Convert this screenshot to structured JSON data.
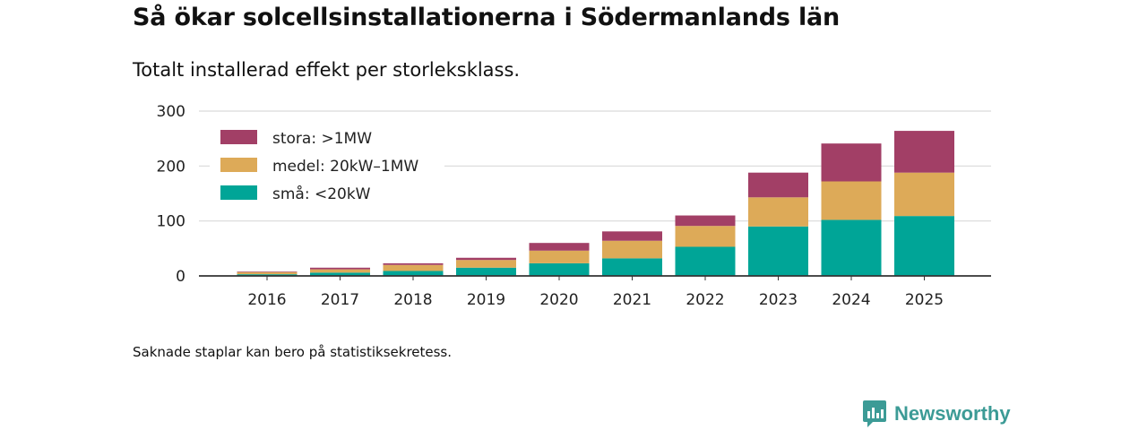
{
  "header": {
    "title": "Så ökar solcellsinstallationerna i Södermanlands län",
    "subtitle": "Totalt installerad effekt per storleksklass."
  },
  "footer": {
    "note": "Saknade staplar kan bero på statistiksekretess.",
    "brand": "Newsworthy"
  },
  "colors": {
    "stora": "#a23f66",
    "medel": "#ddaa58",
    "sma": "#00a597",
    "brand": "#3c9b96",
    "grid": "#d9d9d9",
    "axis": "#333333"
  },
  "chart_data": {
    "type": "bar",
    "stacked": true,
    "title": "Så ökar solcellsinstallationerna i Södermanlands län",
    "subtitle": "Totalt installerad effekt per storleksklass.",
    "xlabel": "",
    "ylabel": "",
    "ylim": [
      0,
      300
    ],
    "yticks": [
      0,
      100,
      200,
      300
    ],
    "grid": true,
    "legend_position": "top-left",
    "categories": [
      "2016",
      "2017",
      "2018",
      "2019",
      "2020",
      "2021",
      "2022",
      "2023",
      "2024",
      "2025"
    ],
    "series": [
      {
        "name": "små: <20kW",
        "key": "sma",
        "values": [
          3,
          6,
          9,
          15,
          23,
          32,
          53,
          90,
          102,
          109
        ]
      },
      {
        "name": "medel: 20kW–1MW",
        "key": "medel",
        "values": [
          4,
          6,
          11,
          14,
          23,
          32,
          38,
          53,
          70,
          79
        ]
      },
      {
        "name": "stora: >1MW",
        "key": "stora",
        "values": [
          1,
          3,
          3,
          4,
          14,
          17,
          19,
          45,
          69,
          76
        ]
      }
    ],
    "legend_order": [
      "stora",
      "medel",
      "sma"
    ]
  }
}
